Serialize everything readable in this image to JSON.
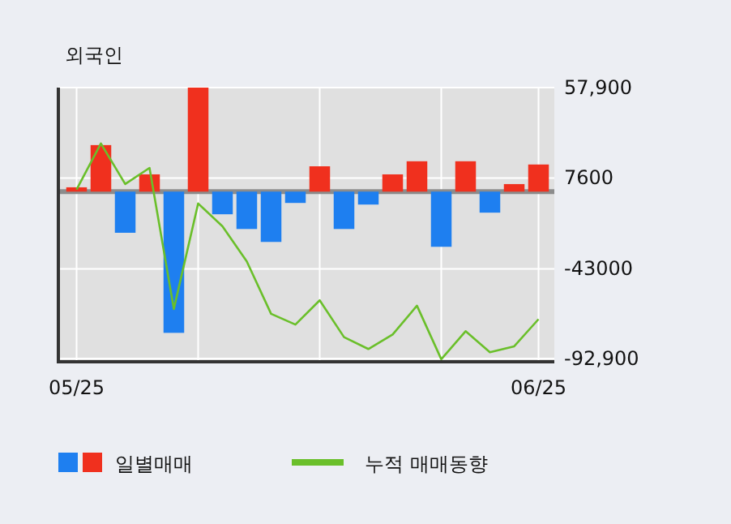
{
  "chart_data": {
    "type": "bar",
    "title": "외국인",
    "categories": [
      "05/25",
      null,
      null,
      null,
      null,
      null,
      null,
      null,
      null,
      null,
      null,
      null,
      null,
      null,
      null,
      null,
      null,
      null,
      null,
      "06/25"
    ],
    "series": [
      {
        "name": "일별매매",
        "colors": [
          "#f0301e",
          "#f0301e",
          "#1e7ff0",
          "#f0301e",
          "#1e7ff0",
          "#f0301e",
          "#1e7ff0",
          "#1e7ff0",
          "#1e7ff0",
          "#1e7ff0",
          "#f0301e",
          "#1e7ff0",
          "#1e7ff0",
          "#f0301e",
          "#f0301e",
          "#1e7ff0",
          "#f0301e",
          "#1e7ff0",
          "#f0301e",
          "#f0301e"
        ],
        "values": [
          2400,
          25900,
          -22900,
          9600,
          -78600,
          57900,
          -12600,
          -20800,
          -28000,
          -6300,
          14100,
          -20800,
          -7200,
          9600,
          16900,
          -30700,
          16900,
          -11700,
          4200,
          15100
        ]
      },
      {
        "name": "누적 매매동향",
        "type": "line",
        "color": "#6abf2a",
        "values": [
          1200,
          26800,
          4200,
          13200,
          -65300,
          -6600,
          -19300,
          -38800,
          -68000,
          -74000,
          -60500,
          -81000,
          -87600,
          -79500,
          -63500,
          -93300,
          -77700,
          -89400,
          -86100,
          -71000
        ]
      }
    ],
    "ylim": [
      -94700,
      57900
    ],
    "yticks": [
      {
        "value": 57900,
        "label": "57,900"
      },
      7600,
      -43000,
      {
        "value": -92900,
        "label": "-92,900"
      }
    ],
    "ref_lines": [
      {
        "axis": "y",
        "value": 0,
        "color": "#8c8c8c"
      }
    ],
    "grid": true,
    "legend": "bottom"
  }
}
